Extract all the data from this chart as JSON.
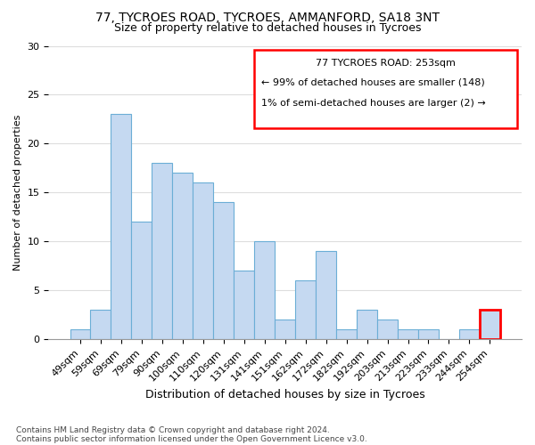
{
  "title": "77, TYCROES ROAD, TYCROES, AMMANFORD, SA18 3NT",
  "subtitle": "Size of property relative to detached houses in Tycroes",
  "xlabel": "Distribution of detached houses by size in Tycroes",
  "ylabel": "Number of detached properties",
  "categories": [
    "49sqm",
    "59sqm",
    "69sqm",
    "79sqm",
    "90sqm",
    "100sqm",
    "110sqm",
    "120sqm",
    "131sqm",
    "141sqm",
    "151sqm",
    "162sqm",
    "172sqm",
    "182sqm",
    "192sqm",
    "203sqm",
    "213sqm",
    "223sqm",
    "233sqm",
    "244sqm",
    "254sqm"
  ],
  "values": [
    1,
    3,
    23,
    12,
    18,
    17,
    16,
    14,
    7,
    10,
    2,
    6,
    9,
    1,
    3,
    2,
    1,
    1,
    0,
    1,
    3
  ],
  "bar_color": "#c5d9f1",
  "bar_edge_color": "#6baed6",
  "ylim": [
    0,
    30
  ],
  "yticks": [
    0,
    5,
    10,
    15,
    20,
    25,
    30
  ],
  "legend_title": "77 TYCROES ROAD: 253sqm",
  "legend_line1": "← 99% of detached houses are smaller (148)",
  "legend_line2": "1% of semi-detached houses are larger (2) →",
  "footer_line1": "Contains HM Land Registry data © Crown copyright and database right 2024.",
  "footer_line2": "Contains public sector information licensed under the Open Government Licence v3.0.",
  "highlight_bar_index": 20,
  "background_color": "#ffffff",
  "grid_color": "#dddddd",
  "title_fontsize": 10,
  "subtitle_fontsize": 9,
  "ylabel_fontsize": 8,
  "xlabel_fontsize": 9,
  "tick_fontsize": 8,
  "footer_fontsize": 6.5
}
